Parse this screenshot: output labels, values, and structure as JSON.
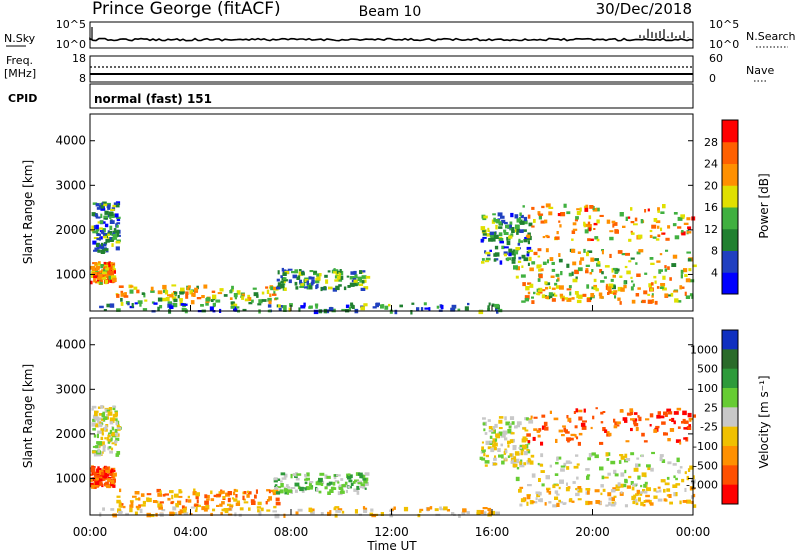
{
  "header": {
    "station": "Prince George (fitACF)",
    "beam": "Beam 10",
    "date": "30/Dec/2018"
  },
  "nsky_panel": {
    "left_label": "N.Sky",
    "right_label": "N.Search",
    "left_ticks": [
      "10^5",
      "10^0"
    ],
    "right_ticks": [
      "10^5",
      "10^0"
    ]
  },
  "freq_panel": {
    "left_label_1": "Freq.",
    "left_label_2": "[MHz]",
    "right_label": "Nave",
    "left_ticks": [
      "18",
      "8"
    ],
    "right_ticks": [
      "60",
      "0"
    ]
  },
  "cpid_panel": {
    "label": "CPID",
    "value": "normal (fast) 151"
  },
  "chart_data": [
    {
      "type": "heatmap",
      "name": "power",
      "ylabel": "Slant Range [km]",
      "y_ticks": [
        "1000",
        "2000",
        "3000",
        "4000"
      ],
      "ylim": [
        180,
        4600
      ],
      "colorbar_label": "Power [dB]",
      "colorbar_ticks": [
        "4",
        "8",
        "12",
        "16",
        "20",
        "24",
        "28"
      ],
      "colorbar_range": [
        0,
        30
      ],
      "colors": [
        "#0000ff",
        "#2040c0",
        "#208030",
        "#40b040",
        "#e0e000",
        "#ff9000",
        "#ff6000",
        "#ff0000"
      ],
      "regions": [
        {
          "t0": 0.05,
          "t1": 1.1,
          "r0": 1550,
          "r1": 2650,
          "level": 0.3
        },
        {
          "t0": 0.0,
          "t1": 0.9,
          "r0": 850,
          "r1": 1300,
          "level": 0.75
        },
        {
          "t0": 1.0,
          "t1": 7.5,
          "r0": 380,
          "r1": 780,
          "level": 0.55
        },
        {
          "t0": 7.3,
          "t1": 11.0,
          "r0": 700,
          "r1": 1150,
          "level": 0.35
        },
        {
          "t0": 0.3,
          "t1": 16.5,
          "r0": 200,
          "r1": 380,
          "level": 0.25
        },
        {
          "t0": 15.5,
          "t1": 17.5,
          "r0": 1300,
          "r1": 2400,
          "level": 0.3
        },
        {
          "t0": 17.2,
          "t1": 24.0,
          "r0": 1800,
          "r1": 2600,
          "level": 0.7
        },
        {
          "t0": 16.5,
          "t1": 24.0,
          "r0": 850,
          "r1": 1600,
          "level": 0.55
        },
        {
          "t0": 17.0,
          "t1": 24.0,
          "r0": 400,
          "r1": 850,
          "level": 0.6
        }
      ]
    },
    {
      "type": "heatmap",
      "name": "velocity",
      "ylabel": "Slant Range [km]",
      "y_ticks": [
        "1000",
        "2000",
        "3000",
        "4000"
      ],
      "ylim": [
        180,
        4600
      ],
      "colorbar_label": "Velocity [m s⁻¹]",
      "colorbar_ticks": [
        "1000",
        "500",
        "100",
        "25",
        "-25",
        "-100",
        "-500",
        "-1000"
      ],
      "colors": [
        "#1030c0",
        "#2a6b2a",
        "#2d9a3a",
        "#66cc33",
        "#c8c8c8",
        "#f0c000",
        "#ff9000",
        "#ff5000",
        "#ff0000"
      ],
      "regions": [
        {
          "t0": 0.05,
          "t1": 1.1,
          "r0": 1550,
          "r1": 2650,
          "level": 4
        },
        {
          "t0": 0.0,
          "t1": 0.9,
          "r0": 850,
          "r1": 1300,
          "level": 7
        },
        {
          "t0": 1.0,
          "t1": 7.5,
          "r0": 380,
          "r1": 780,
          "level": 6
        },
        {
          "t0": 7.3,
          "t1": 11.0,
          "r0": 700,
          "r1": 1150,
          "level": 3
        },
        {
          "t0": 0.3,
          "t1": 16.5,
          "r0": 200,
          "r1": 380,
          "level": 5
        },
        {
          "t0": 15.5,
          "t1": 17.5,
          "r0": 1300,
          "r1": 2400,
          "level": 4
        },
        {
          "t0": 17.2,
          "t1": 24.0,
          "r0": 1800,
          "r1": 2600,
          "level": 7
        },
        {
          "t0": 16.5,
          "t1": 24.0,
          "r0": 850,
          "r1": 1600,
          "level": 4
        },
        {
          "t0": 17.0,
          "t1": 24.0,
          "r0": 400,
          "r1": 850,
          "level": 5
        }
      ]
    }
  ],
  "time_axis": {
    "ticks": [
      "00:00",
      "04:00",
      "08:00",
      "12:00",
      "16:00",
      "20:00",
      "00:00"
    ],
    "label": "Time UT"
  }
}
